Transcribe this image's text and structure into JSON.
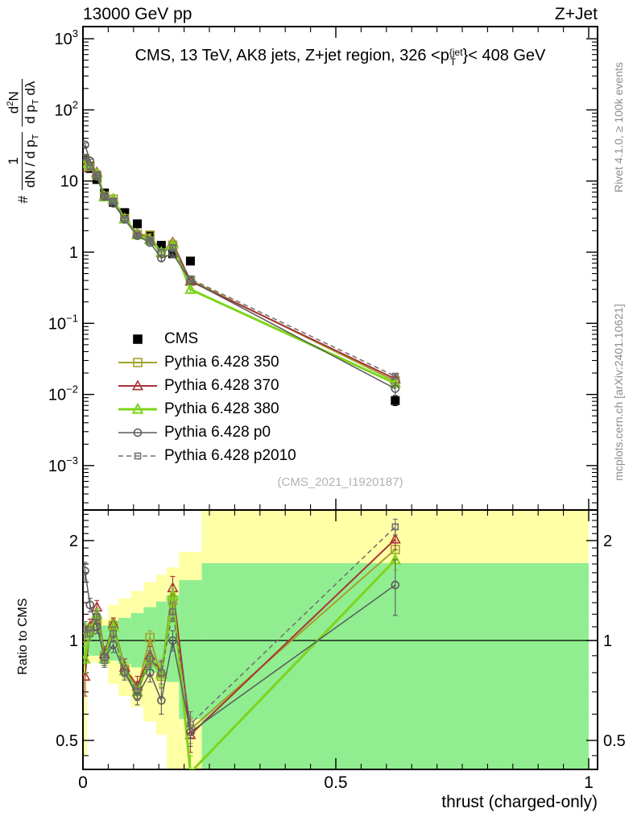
{
  "header": {
    "left": "13000 GeV pp",
    "right": "Z+Jet"
  },
  "panel_title": {
    "part1": "CMS, 13 TeV, AK8 jets, Z+jet region, 326 <p",
    "sup": "{jet",
    "sub": "T",
    "part2": "}< 408 GeV"
  },
  "y_axis_label": {
    "hash": "#",
    "frac1_num": "1",
    "frac1_den": "dN / d p",
    "frac1_den_sub": "T",
    "frac2_num_a": "d",
    "frac2_num_sup": "2",
    "frac2_num_b": "N",
    "frac2_den_a": "d p",
    "frac2_den_sub": "T",
    "frac2_den_b": " dλ"
  },
  "ratio_axis_label": "Ratio to CMS",
  "x_axis_label": "thrust (charged-only)",
  "watermark": "(CMS_2021_I1920187)",
  "credits": {
    "right_top": "Rivet 4.1.0, ≥ 100k events",
    "right_bottom": "mcplots.cern.ch [arXiv:2401.10621]"
  },
  "colors": {
    "cms": "#000000",
    "py350": "#a2a12b",
    "py370": "#a83238",
    "py380": "#7dd41c",
    "p0": "#5a5a5a",
    "p2010": "#6e6e6e",
    "band_green": "#90ee90",
    "band_yellow": "#ffffa6",
    "axis": "#000000",
    "watermark": "#b3b3b3",
    "credits": "#8c8c8c"
  },
  "chart_data": {
    "type": "line",
    "title": "CMS, 13 TeV, AK8 jets, Z+jet region, 326 <p{jet}_T}< 408 GeV",
    "xlabel": "thrust (charged-only)",
    "ylabel_main": "# 1/(dN/dp_T) d2N/(dp_T dλ)",
    "ylabel_ratio": "Ratio to CMS",
    "x_log": false,
    "y_log_main": true,
    "y_log_ratio": true,
    "axis_ranges": {
      "x": [
        0,
        1.017
      ],
      "main_y": [
        0.00024,
        1480
      ],
      "ratio_y": [
        0.41,
        2.47
      ]
    },
    "x_ticks": [
      {
        "label": "0",
        "v": 0
      },
      {
        "label": "0.5",
        "v": 0.5
      },
      {
        "label": "1",
        "v": 1
      }
    ],
    "main_y_ticks": [
      {
        "base": "10",
        "exp": "3",
        "v": 1000
      },
      {
        "base": "10",
        "exp": "2",
        "v": 100
      },
      {
        "base": "10",
        "exp": "",
        "v": 10
      },
      {
        "base": "1",
        "exp": "",
        "v": 1
      },
      {
        "base": "10",
        "exp": "−1",
        "v": 0.1
      },
      {
        "base": "10",
        "exp": "−2",
        "v": 0.01
      },
      {
        "base": "10",
        "exp": "−3",
        "v": 0.001
      }
    ],
    "ratio_y_ticks": [
      {
        "label": "2",
        "v": 2
      },
      {
        "label": "1",
        "v": 1
      },
      {
        "label": "0.5",
        "v": 0.5
      }
    ],
    "x": [
      0.004,
      0.014,
      0.0275,
      0.0425,
      0.06,
      0.0825,
      0.1075,
      0.1325,
      0.155,
      0.1775,
      0.2125,
      0.6175
    ],
    "bin_edges": [
      0,
      0.008,
      0.02,
      0.035,
      0.05,
      0.07,
      0.095,
      0.12,
      0.145,
      0.165,
      0.19,
      0.235,
      1.0
    ],
    "cms_values": [
      20,
      15,
      10.5,
      6.8,
      5.0,
      3.6,
      2.5,
      1.7,
      1.25,
      0.95,
      0.75,
      0.0082
    ],
    "cms_rel_err": [
      0.04,
      0.04,
      0.04,
      0.04,
      0.04,
      0.04,
      0.04,
      0.04,
      0.04,
      0.04,
      0.05,
      0.15
    ],
    "series": [
      {
        "key": "cms",
        "name": "CMS",
        "marker": "square",
        "filled": true,
        "line": "none",
        "color_ref": "cms"
      },
      {
        "key": "py350",
        "name": "Pythia 6.428 350",
        "marker": "square",
        "filled": false,
        "lw": 2,
        "color_ref": "py350",
        "ratio": [
          1.02,
          1.08,
          1.15,
          0.9,
          1.11,
          0.82,
          0.71,
          1.02,
          0.78,
          1.32,
          0.54,
          1.88
        ],
        "ratio_err": [
          0.06,
          0.05,
          0.05,
          0.04,
          0.05,
          0.04,
          0.04,
          0.05,
          0.06,
          0.08,
          0.05,
          0.12
        ]
      },
      {
        "key": "py370",
        "name": "Pythia 6.428 370",
        "marker": "triangle",
        "filled": false,
        "lw": 2,
        "color_ref": "py370",
        "ratio": [
          0.78,
          1.1,
          1.26,
          0.91,
          1.12,
          0.83,
          0.73,
          0.9,
          0.8,
          1.44,
          0.52,
          2.02
        ],
        "ratio_err": [
          0.1,
          0.06,
          0.06,
          0.05,
          0.05,
          0.05,
          0.05,
          0.06,
          0.07,
          0.12,
          0.06,
          0.14
        ]
      },
      {
        "key": "py380",
        "name": "Pythia 6.428 380",
        "marker": "triangle",
        "filled": false,
        "lw": 3,
        "color_ref": "py380",
        "ratio": [
          0.88,
          1.07,
          1.2,
          0.88,
          1.1,
          0.81,
          0.7,
          0.88,
          0.79,
          1.37,
          0.4,
          1.75
        ],
        "ratio_err": [
          0.08,
          0.05,
          0.05,
          0.04,
          0.05,
          0.04,
          0.04,
          0.05,
          0.06,
          0.08,
          0.05,
          0.12
        ]
      },
      {
        "key": "p0",
        "name": "Pythia 6.428 p0",
        "marker": "circle",
        "filled": false,
        "lw": 1.5,
        "color_ref": "p0",
        "ratio": [
          1.62,
          1.28,
          1.1,
          0.89,
          0.97,
          0.8,
          0.68,
          0.8,
          0.66,
          1.0,
          0.53,
          1.47
        ],
        "ratio_err": [
          0.1,
          0.06,
          0.05,
          0.05,
          0.05,
          0.04,
          0.04,
          0.05,
          0.06,
          0.07,
          0.05,
          0.28
        ]
      },
      {
        "key": "p2010",
        "name": "Pythia 6.428 p2010",
        "marker": "square-small",
        "filled": false,
        "lw": 1.5,
        "dash": "6,4",
        "color_ref": "p2010",
        "ratio": [
          1.08,
          1.05,
          1.18,
          0.87,
          1.05,
          0.8,
          0.7,
          0.88,
          0.8,
          1.22,
          0.56,
          2.2
        ],
        "ratio_err": [
          0.06,
          0.05,
          0.05,
          0.04,
          0.05,
          0.04,
          0.04,
          0.05,
          0.06,
          0.08,
          0.05,
          0.12
        ]
      }
    ],
    "ratio_bands": [
      {
        "x0": 0,
        "x1": 0.008,
        "green": [
          0.84,
          1.13
        ],
        "yellow": [
          0.45,
          1.13
        ]
      },
      {
        "x0": 0.008,
        "x1": 0.02,
        "green": [
          0.9,
          1.1
        ],
        "yellow": [
          0.86,
          1.14
        ]
      },
      {
        "x0": 0.02,
        "x1": 0.035,
        "green": [
          0.9,
          1.1
        ],
        "yellow": [
          0.86,
          1.14
        ]
      },
      {
        "x0": 0.035,
        "x1": 0.05,
        "green": [
          0.89,
          1.11
        ],
        "yellow": [
          0.84,
          1.16
        ]
      },
      {
        "x0": 0.05,
        "x1": 0.07,
        "green": [
          0.87,
          1.14
        ],
        "yellow": [
          0.74,
          1.28
        ]
      },
      {
        "x0": 0.07,
        "x1": 0.095,
        "green": [
          0.85,
          1.17
        ],
        "yellow": [
          0.68,
          1.34
        ]
      },
      {
        "x0": 0.095,
        "x1": 0.12,
        "green": [
          0.83,
          1.21
        ],
        "yellow": [
          0.63,
          1.41
        ]
      },
      {
        "x0": 0.12,
        "x1": 0.145,
        "green": [
          0.8,
          1.26
        ],
        "yellow": [
          0.57,
          1.5
        ]
      },
      {
        "x0": 0.145,
        "x1": 0.165,
        "green": [
          0.78,
          1.31
        ],
        "yellow": [
          0.52,
          1.58
        ]
      },
      {
        "x0": 0.165,
        "x1": 0.19,
        "green": [
          0.75,
          1.37
        ],
        "yellow": [
          0.38,
          1.66
        ]
      },
      {
        "x0": 0.19,
        "x1": 0.235,
        "green": [
          0.58,
          1.52
        ],
        "yellow": [
          0.33,
          1.85
        ]
      },
      {
        "x0": 0.235,
        "x1": 1.0,
        "green": [
          0.38,
          1.71
        ],
        "yellow": [
          0.33,
          2.55
        ]
      }
    ]
  }
}
